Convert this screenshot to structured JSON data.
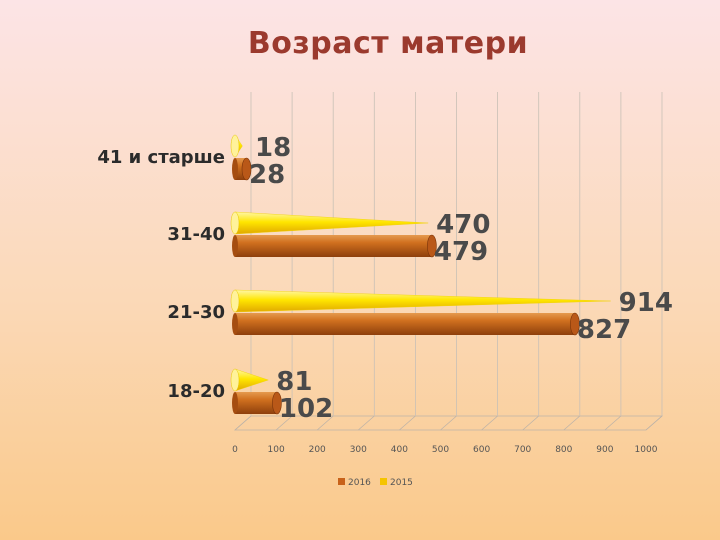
{
  "chart_data": {
    "type": "bar",
    "orientation": "horizontal",
    "title": "Возраст матери",
    "categories": [
      "18-20",
      "21-30",
      "31-40",
      "41 и старше"
    ],
    "series": [
      {
        "name": "2016",
        "values": [
          102,
          827,
          479,
          28
        ],
        "color": "#c8621a",
        "shape": "cylinder"
      },
      {
        "name": "2015",
        "values": [
          81,
          914,
          470,
          18
        ],
        "color": "#f5c400",
        "shape": "cone"
      }
    ],
    "xlim": [
      0,
      1000
    ],
    "xticks": [
      0,
      100,
      200,
      300,
      400,
      500,
      600,
      700,
      800,
      900,
      1000
    ],
    "grid": true,
    "legend": "bottom"
  }
}
